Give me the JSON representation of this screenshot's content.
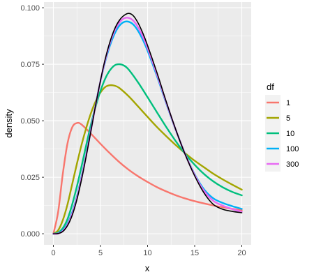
{
  "chart_data": {
    "type": "line",
    "title": "",
    "xlabel": "x",
    "ylabel": "density",
    "xlim": [
      -1,
      21
    ],
    "ylim": [
      -0.0049,
      0.1025
    ],
    "x_ticks": [
      0,
      5,
      10,
      15,
      20
    ],
    "x_tick_labels": [
      "0",
      "5",
      "10",
      "15",
      "20"
    ],
    "y_ticks": [
      0,
      0.025,
      0.05,
      0.075,
      0.1
    ],
    "y_tick_labels": [
      "0.000",
      "0.025",
      "0.050",
      "0.075",
      "0.100"
    ],
    "grid": true,
    "legend": {
      "title": "df",
      "placement": "right"
    },
    "series": [
      {
        "name": "1",
        "color": "#F8766D",
        "x": [
          0,
          0.5,
          1,
          1.5,
          2,
          2.5,
          3,
          4,
          5,
          6,
          7,
          8,
          9,
          10,
          11,
          12,
          13,
          14,
          15,
          16,
          17,
          18,
          19,
          20
        ],
        "y": [
          0,
          0.0095,
          0.0265,
          0.04,
          0.0471,
          0.049,
          0.0483,
          0.0442,
          0.0398,
          0.0356,
          0.0317,
          0.0283,
          0.0254,
          0.0229,
          0.0206,
          0.0187,
          0.017,
          0.0156,
          0.0144,
          0.0134,
          0.0125,
          0.0117,
          0.011,
          0.0104
        ]
      },
      {
        "name": "5",
        "color": "#A3A500",
        "x": [
          0,
          0.5,
          1,
          1.5,
          2,
          2.5,
          3,
          3.5,
          4,
          4.5,
          5,
          5.5,
          6,
          6.5,
          7,
          8,
          9,
          10,
          11,
          12,
          13,
          14,
          15,
          16,
          17,
          18,
          19,
          20
        ],
        "y": [
          0,
          0.0015,
          0.006,
          0.013,
          0.022,
          0.031,
          0.0395,
          0.047,
          0.0535,
          0.0587,
          0.0625,
          0.0649,
          0.0657,
          0.0655,
          0.0645,
          0.0608,
          0.0563,
          0.0517,
          0.0472,
          0.0431,
          0.0392,
          0.0356,
          0.0323,
          0.0294,
          0.0265,
          0.024,
          0.0217,
          0.0195
        ]
      },
      {
        "name": "10",
        "color": "#00BF7D",
        "x": [
          0,
          0.5,
          1,
          1.5,
          2,
          2.5,
          3,
          3.5,
          4,
          4.5,
          5,
          5.5,
          6,
          6.5,
          7,
          7.5,
          8,
          9,
          10,
          11,
          12,
          13,
          14,
          15,
          16,
          17,
          18,
          19,
          20
        ],
        "y": [
          0,
          0.0005,
          0.0025,
          0.0065,
          0.013,
          0.021,
          0.03,
          0.0395,
          0.0485,
          0.0565,
          0.0632,
          0.0686,
          0.0723,
          0.0745,
          0.075,
          0.0744,
          0.0726,
          0.0669,
          0.0604,
          0.0537,
          0.0471,
          0.0409,
          0.0353,
          0.0305,
          0.0264,
          0.0231,
          0.0205,
          0.0185,
          0.017
        ]
      },
      {
        "name": "100",
        "color": "#00B0F6",
        "x": [
          0,
          0.5,
          1,
          1.5,
          2,
          2.5,
          3,
          3.5,
          4,
          4.5,
          5,
          5.5,
          6,
          6.5,
          7,
          7.5,
          8,
          8.5,
          9,
          9.5,
          10,
          11,
          12,
          13,
          14,
          15,
          16,
          17,
          18,
          19,
          20
        ],
        "y": [
          0,
          0.0002,
          0.0015,
          0.0045,
          0.0095,
          0.0165,
          0.0255,
          0.0355,
          0.0465,
          0.0575,
          0.0675,
          0.0762,
          0.0832,
          0.0885,
          0.092,
          0.0937,
          0.0938,
          0.0925,
          0.0897,
          0.0858,
          0.081,
          0.0697,
          0.0575,
          0.0458,
          0.0352,
          0.0263,
          0.0196,
          0.0156,
          0.0136,
          0.0122,
          0.011
        ]
      },
      {
        "name": "300",
        "color": "#E76BF3",
        "x": [
          0,
          0.5,
          1,
          1.5,
          2,
          2.5,
          3,
          3.5,
          4,
          4.5,
          5,
          5.5,
          6,
          6.5,
          7,
          7.5,
          8,
          8.5,
          9,
          9.5,
          10,
          11,
          12,
          13,
          14,
          15,
          16,
          17,
          18,
          19,
          20
        ],
        "y": [
          0,
          0.0001,
          0.0012,
          0.004,
          0.0088,
          0.0158,
          0.0248,
          0.035,
          0.046,
          0.0572,
          0.0676,
          0.0768,
          0.0843,
          0.0898,
          0.0934,
          0.0953,
          0.0955,
          0.0942,
          0.0913,
          0.0872,
          0.0822,
          0.0705,
          0.0579,
          0.0459,
          0.0351,
          0.026,
          0.0189,
          0.0145,
          0.0124,
          0.0109,
          0.0097
        ]
      },
      {
        "name": "",
        "color": "#000000",
        "x": [
          0,
          0.5,
          1,
          1.5,
          2,
          2.5,
          3,
          3.5,
          4,
          4.5,
          5,
          5.5,
          6,
          6.5,
          7,
          7.5,
          8,
          8.5,
          9,
          9.5,
          10,
          11,
          12,
          13,
          14,
          15,
          16,
          17,
          18,
          19,
          20
        ],
        "y": [
          0,
          0.0001,
          0.001,
          0.0036,
          0.0082,
          0.0152,
          0.0242,
          0.0346,
          0.0458,
          0.0572,
          0.0678,
          0.0772,
          0.0848,
          0.0906,
          0.0944,
          0.0966,
          0.0975,
          0.0964,
          0.0932,
          0.0887,
          0.0833,
          0.0712,
          0.0582,
          0.046,
          0.035,
          0.0256,
          0.018,
          0.0129,
          0.0108,
          0.0099,
          0.0093
        ]
      }
    ]
  }
}
